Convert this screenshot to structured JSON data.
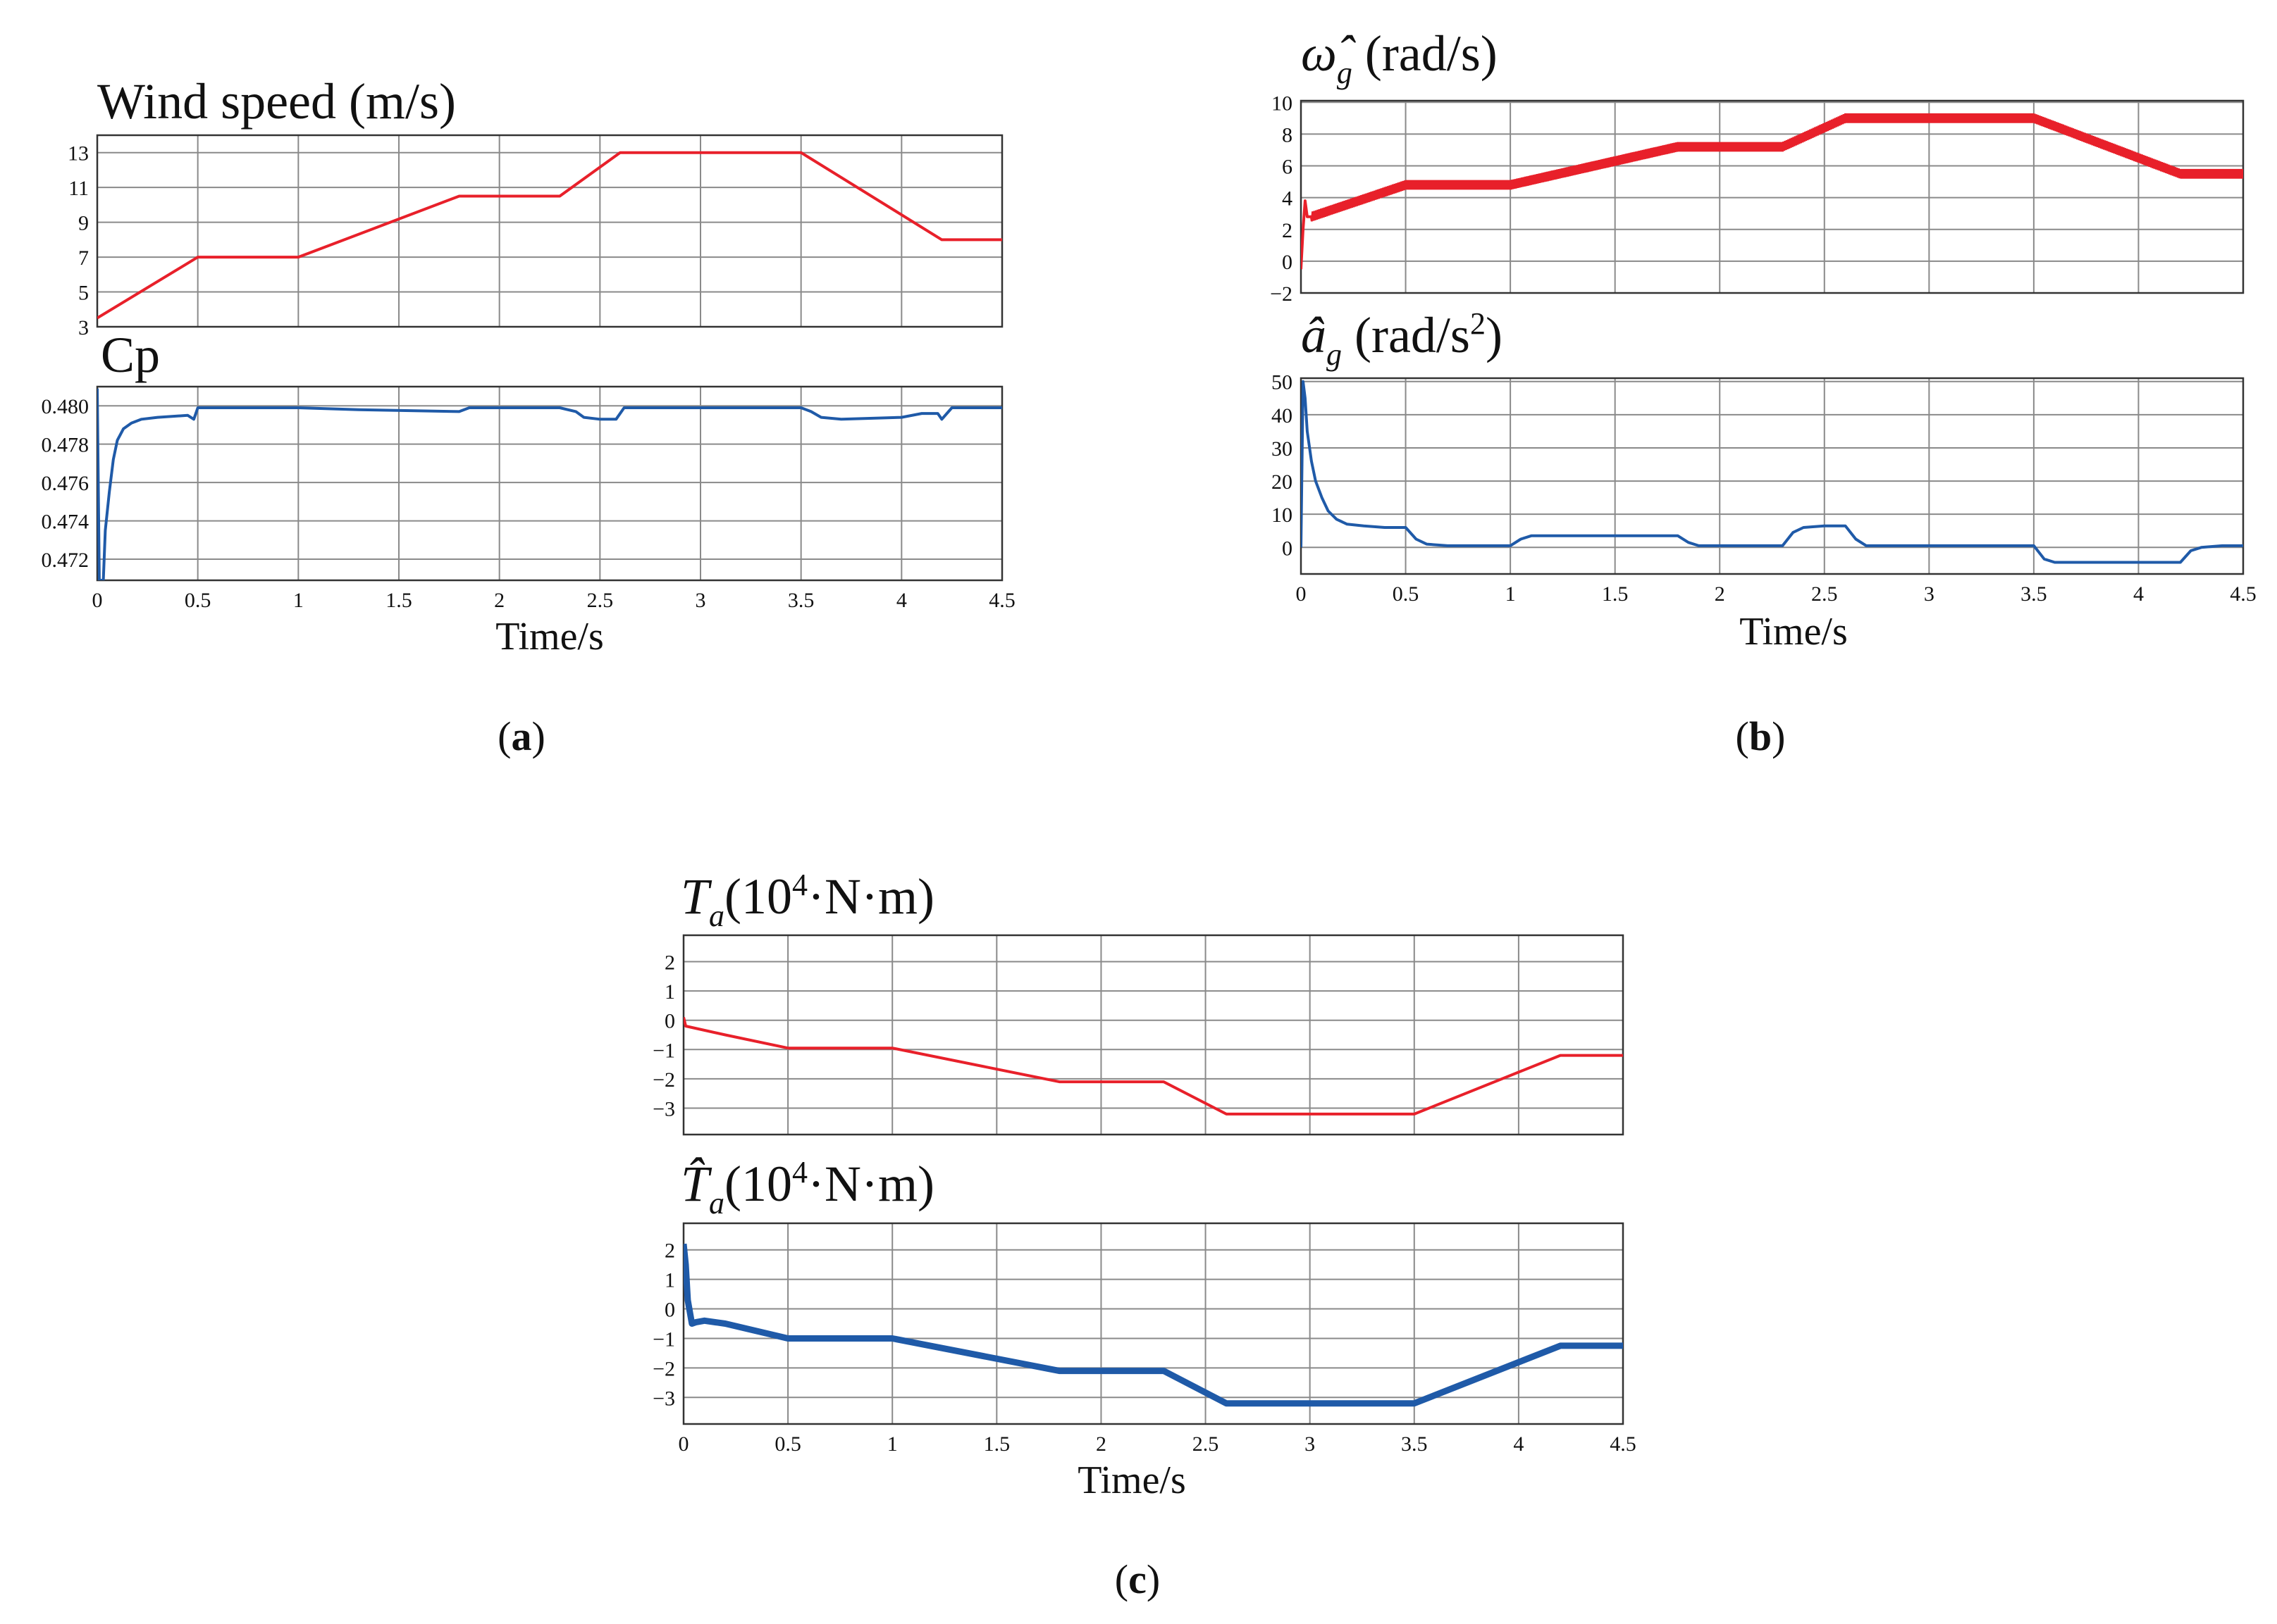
{
  "colors": {
    "red": "#e8202a",
    "blue": "#1f5aa8",
    "grid": "#8a8a8a",
    "frame": "#333333"
  },
  "panels": {
    "a": {
      "letter": "a",
      "xlabel": "Time/s"
    },
    "b": {
      "letter": "b",
      "xlabel": "Time/s"
    },
    "c": {
      "letter": "c",
      "xlabel": "Time/s"
    }
  },
  "chart_data": [
    {
      "id": "wind",
      "panel": "a",
      "type": "line",
      "title": "Wind speed (m/s)",
      "color": "red",
      "xlim": [
        0,
        4.5
      ],
      "ylim": [
        3,
        14
      ],
      "yticks": [
        3,
        5,
        7,
        9,
        11,
        13
      ],
      "ytick_labels": [
        "3",
        "5",
        "7",
        "9",
        "11",
        "13"
      ],
      "xticks": [
        0,
        0.5,
        1,
        1.5,
        2,
        2.5,
        3,
        3.5,
        4,
        4.5
      ],
      "xtick_labels": [],
      "grid": true,
      "x": [
        0,
        0.5,
        1.0,
        1.8,
        2.3,
        2.6,
        3.5,
        4.2,
        4.5
      ],
      "y": [
        3.5,
        7.0,
        7.0,
        10.5,
        10.5,
        13.0,
        13.0,
        8.0,
        8.0
      ]
    },
    {
      "id": "cp",
      "panel": "a",
      "type": "line",
      "title": "Cp",
      "color": "blue",
      "xlim": [
        0,
        4.5
      ],
      "ylim": [
        0.4709,
        0.481
      ],
      "yticks": [
        0.472,
        0.474,
        0.476,
        0.478,
        0.48
      ],
      "ytick_labels": [
        "0.472",
        "0.474",
        "0.476",
        "0.478",
        "0.480"
      ],
      "xticks": [
        0,
        0.5,
        1,
        1.5,
        2,
        2.5,
        3,
        3.5,
        4,
        4.5
      ],
      "xtick_labels": [
        "0",
        "0.5",
        "1",
        "1.5",
        "2",
        "2.5",
        "3",
        "3.5",
        "4",
        "4.5"
      ],
      "grid": true,
      "x": [
        0,
        0.01,
        0.02,
        0.03,
        0.04,
        0.06,
        0.08,
        0.1,
        0.13,
        0.17,
        0.22,
        0.3,
        0.45,
        0.48,
        0.5,
        1.0,
        1.3,
        1.8,
        1.85,
        2.3,
        2.38,
        2.42,
        2.5,
        2.58,
        2.62,
        2.7,
        3.5,
        3.55,
        3.6,
        3.7,
        4.0,
        4.1,
        4.18,
        4.2,
        4.25,
        4.5
      ],
      "y": [
        0.4809,
        0.4709,
        0.4709,
        0.4709,
        0.4735,
        0.4755,
        0.4772,
        0.4782,
        0.4788,
        0.4791,
        0.4793,
        0.4794,
        0.4795,
        0.4793,
        0.4799,
        0.4799,
        0.4798,
        0.4797,
        0.4799,
        0.4799,
        0.4797,
        0.4794,
        0.4793,
        0.4793,
        0.4799,
        0.4799,
        0.4799,
        0.4797,
        0.4794,
        0.4793,
        0.4794,
        0.4796,
        0.4796,
        0.4793,
        0.4799,
        0.4799
      ]
    },
    {
      "id": "omega",
      "panel": "b",
      "type": "line",
      "title": "ω̂g (rad/s)",
      "title_parts": {
        "sym": "ω̂",
        "sub": "g",
        "unit": " (rad/s)"
      },
      "color": "red",
      "xlim": [
        0,
        4.5
      ],
      "ylim": [
        -2,
        10.1
      ],
      "yticks": [
        -2,
        0,
        2,
        4,
        6,
        8,
        10
      ],
      "ytick_labels": [
        "−2",
        "0",
        "2",
        "4",
        "6",
        "8",
        "10"
      ],
      "xticks": [
        0,
        0.5,
        1,
        1.5,
        2,
        2.5,
        3,
        3.5,
        4,
        4.5
      ],
      "xtick_labels": [],
      "grid": true,
      "noise": 0.3,
      "x": [
        0,
        0.01,
        0.02,
        0.03,
        0.05,
        0.5,
        1.0,
        1.8,
        2.3,
        2.6,
        3.5,
        4.2,
        4.5
      ],
      "y": [
        -0.5,
        2.0,
        3.8,
        2.8,
        2.8,
        4.8,
        4.8,
        7.2,
        7.2,
        9.0,
        9.0,
        5.5,
        5.5
      ]
    },
    {
      "id": "accel",
      "panel": "b",
      "type": "line",
      "title": "âg (rad/s²)",
      "title_parts": {
        "sym": "â",
        "sub": "g",
        "unit": " (rad/s",
        "sup": "2",
        "close": ")"
      },
      "color": "blue",
      "xlim": [
        0,
        4.5
      ],
      "ylim": [
        -8,
        51
      ],
      "yticks": [
        0,
        10,
        20,
        30,
        40,
        50
      ],
      "ytick_labels": [
        "0",
        "10",
        "20",
        "30",
        "40",
        "50"
      ],
      "xticks": [
        0,
        0.5,
        1,
        1.5,
        2,
        2.5,
        3,
        3.5,
        4,
        4.5
      ],
      "xtick_labels": [
        "0",
        "0.5",
        "1",
        "1.5",
        "2",
        "2.5",
        "3",
        "3.5",
        "4",
        "4.5"
      ],
      "grid": true,
      "x": [
        0,
        0.01,
        0.02,
        0.03,
        0.05,
        0.07,
        0.1,
        0.13,
        0.17,
        0.22,
        0.3,
        0.4,
        0.5,
        0.55,
        0.6,
        0.7,
        1.0,
        1.05,
        1.1,
        1.2,
        1.8,
        1.85,
        1.9,
        2.0,
        2.3,
        2.35,
        2.4,
        2.5,
        2.6,
        2.65,
        2.7,
        2.8,
        3.5,
        3.55,
        3.6,
        3.7,
        4.2,
        4.25,
        4.3,
        4.4,
        4.5
      ],
      "y": [
        0,
        50,
        45,
        35,
        26,
        20,
        15,
        11,
        8.5,
        7,
        6.5,
        6,
        6,
        2.5,
        1,
        0.5,
        0.5,
        2.5,
        3.5,
        3.5,
        3.5,
        1.5,
        0.5,
        0.5,
        0.5,
        4.5,
        6,
        6.5,
        6.5,
        2.5,
        0.5,
        0.5,
        0.5,
        -3.5,
        -4.5,
        -4.5,
        -4.5,
        -1,
        0,
        0.5,
        0.5
      ]
    },
    {
      "id": "torque",
      "panel": "c",
      "type": "line",
      "title": "Ta (10⁴·N·m)",
      "title_parts": {
        "sym": "T",
        "sub": "a",
        "unit": "(10",
        "sup": "4",
        "close": "·N·m)"
      },
      "color": "red",
      "xlim": [
        0,
        4.5
      ],
      "ylim": [
        -3.9,
        2.9
      ],
      "yticks": [
        -3,
        -2,
        -1,
        0,
        1,
        2
      ],
      "ytick_labels": [
        "−3",
        "−2",
        "−1",
        "0",
        "1",
        "2"
      ],
      "xticks": [
        0,
        0.5,
        1,
        1.5,
        2,
        2.5,
        3,
        3.5,
        4,
        4.5
      ],
      "xtick_labels": [],
      "grid": true,
      "x": [
        0,
        0.01,
        0.2,
        0.5,
        1.0,
        1.8,
        2.3,
        2.6,
        3.5,
        4.2,
        4.5
      ],
      "y": [
        0.1,
        -0.2,
        -0.5,
        -0.95,
        -0.95,
        -2.1,
        -2.1,
        -3.2,
        -3.2,
        -1.2,
        -1.2
      ]
    },
    {
      "id": "torque_est",
      "panel": "c",
      "type": "line",
      "title": "T̂a (10⁴·N·m)",
      "title_parts": {
        "sym": "T̂",
        "sub": "a",
        "unit": "(10",
        "sup": "4",
        "close": "·N·m)"
      },
      "color": "blue",
      "xlim": [
        0,
        4.5
      ],
      "ylim": [
        -3.9,
        2.9
      ],
      "yticks": [
        -3,
        -2,
        -1,
        0,
        1,
        2
      ],
      "ytick_labels": [
        "−3",
        "−2",
        "−1",
        "0",
        "1",
        "2"
      ],
      "xticks": [
        0,
        0.5,
        1,
        1.5,
        2,
        2.5,
        3,
        3.5,
        4,
        4.5
      ],
      "xtick_labels": [
        "0",
        "0.5",
        "1",
        "1.5",
        "2",
        "2.5",
        "3",
        "3.5",
        "4",
        "4.5"
      ],
      "grid": true,
      "x": [
        0,
        0.01,
        0.02,
        0.04,
        0.06,
        0.1,
        0.2,
        0.5,
        1.0,
        1.8,
        2.3,
        2.6,
        3.5,
        4.2,
        4.5
      ],
      "y": [
        2.2,
        1.5,
        0.3,
        -0.5,
        -0.45,
        -0.4,
        -0.5,
        -1.0,
        -1.0,
        -2.1,
        -2.1,
        -3.2,
        -3.2,
        -1.25,
        -1.25
      ]
    }
  ]
}
